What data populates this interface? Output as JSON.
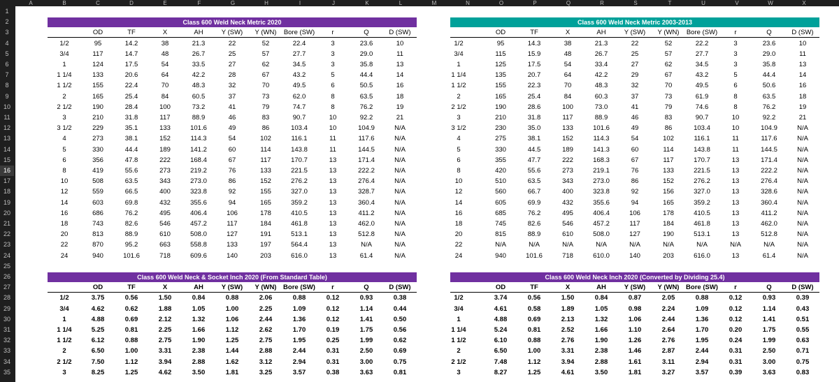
{
  "columns": [
    "A",
    "B",
    "C",
    "D",
    "E",
    "F",
    "G",
    "H",
    "I",
    "J",
    "K",
    "L",
    "M",
    "N",
    "O",
    "P",
    "Q",
    "R",
    "S",
    "T",
    "U",
    "V",
    "W",
    "X"
  ],
  "rows": [
    "1",
    "2",
    "3",
    "4",
    "5",
    "6",
    "7",
    "8",
    "9",
    "10",
    "11",
    "12",
    "13",
    "14",
    "15",
    "16",
    "17",
    "18",
    "19",
    "20",
    "21",
    "22",
    "23",
    "24",
    "25",
    "26",
    "27",
    "28",
    "29",
    "30",
    "31",
    "32",
    "33",
    "34",
    "35"
  ],
  "selected_row": "16",
  "colors": {
    "purple": "#7030a0",
    "teal": "#00a19a"
  },
  "headers": [
    "OD",
    "TF",
    "X",
    "AH",
    "Y (SW)",
    "Y (WN)",
    "Bore (SW)",
    "r",
    "Q",
    "D (SW)"
  ],
  "tables": [
    {
      "title": "Class 600 Weld Neck Metric 2020",
      "color": "purple",
      "rows": [
        [
          "1/2",
          "95",
          "14.2",
          "38",
          "21.3",
          "22",
          "52",
          "22.4",
          "3",
          "23.6",
          "10"
        ],
        [
          "3/4",
          "117",
          "14.7",
          "48",
          "26.7",
          "25",
          "57",
          "27.7",
          "3",
          "29.0",
          "11"
        ],
        [
          "1",
          "124",
          "17.5",
          "54",
          "33.5",
          "27",
          "62",
          "34.5",
          "3",
          "35.8",
          "13"
        ],
        [
          "1 1/4",
          "133",
          "20.6",
          "64",
          "42.2",
          "28",
          "67",
          "43.2",
          "5",
          "44.4",
          "14"
        ],
        [
          "1 1/2",
          "155",
          "22.4",
          "70",
          "48.3",
          "32",
          "70",
          "49.5",
          "6",
          "50.5",
          "16"
        ],
        [
          "2",
          "165",
          "25.4",
          "84",
          "60.5",
          "37",
          "73",
          "62.0",
          "8",
          "63.5",
          "18"
        ],
        [
          "2 1/2",
          "190",
          "28.4",
          "100",
          "73.2",
          "41",
          "79",
          "74.7",
          "8",
          "76.2",
          "19"
        ],
        [
          "3",
          "210",
          "31.8",
          "117",
          "88.9",
          "46",
          "83",
          "90.7",
          "10",
          "92.2",
          "21"
        ],
        [
          "3 1/2",
          "229",
          "35.1",
          "133",
          "101.6",
          "49",
          "86",
          "103.4",
          "10",
          "104.9",
          "N/A"
        ],
        [
          "4",
          "273",
          "38.1",
          "152",
          "114.3",
          "54",
          "102",
          "116.1",
          "11",
          "117.6",
          "N/A"
        ],
        [
          "5",
          "330",
          "44.4",
          "189",
          "141.2",
          "60",
          "114",
          "143.8",
          "11",
          "144.5",
          "N/A"
        ],
        [
          "6",
          "356",
          "47.8",
          "222",
          "168.4",
          "67",
          "117",
          "170.7",
          "13",
          "171.4",
          "N/A"
        ],
        [
          "8",
          "419",
          "55.6",
          "273",
          "219.2",
          "76",
          "133",
          "221.5",
          "13",
          "222.2",
          "N/A"
        ],
        [
          "10",
          "508",
          "63.5",
          "343",
          "273.0",
          "86",
          "152",
          "276.2",
          "13",
          "276.4",
          "N/A"
        ],
        [
          "12",
          "559",
          "66.5",
          "400",
          "323.8",
          "92",
          "155",
          "327.0",
          "13",
          "328.7",
          "N/A"
        ],
        [
          "14",
          "603",
          "69.8",
          "432",
          "355.6",
          "94",
          "165",
          "359.2",
          "13",
          "360.4",
          "N/A"
        ],
        [
          "16",
          "686",
          "76.2",
          "495",
          "406.4",
          "106",
          "178",
          "410.5",
          "13",
          "411.2",
          "N/A"
        ],
        [
          "18",
          "743",
          "82.6",
          "546",
          "457.2",
          "117",
          "184",
          "461.8",
          "13",
          "462.0",
          "N/A"
        ],
        [
          "20",
          "813",
          "88.9",
          "610",
          "508.0",
          "127",
          "191",
          "513.1",
          "13",
          "512.8",
          "N/A"
        ],
        [
          "22",
          "870",
          "95.2",
          "663",
          "558.8",
          "133",
          "197",
          "564.4",
          "13",
          "N/A",
          "N/A"
        ],
        [
          "24",
          "940",
          "101.6",
          "718",
          "609.6",
          "140",
          "203",
          "616.0",
          "13",
          "61.4",
          "N/A"
        ]
      ]
    },
    {
      "title": "Class 600 Weld Neck Metric 2003-2013",
      "color": "teal",
      "rows": [
        [
          "1/2",
          "95",
          "14.3",
          "38",
          "21.3",
          "22",
          "52",
          "22.2",
          "3",
          "23.6",
          "10"
        ],
        [
          "3/4",
          "115",
          "15.9",
          "48",
          "26.7",
          "25",
          "57",
          "27.7",
          "3",
          "29.0",
          "11"
        ],
        [
          "1",
          "125",
          "17.5",
          "54",
          "33.4",
          "27",
          "62",
          "34.5",
          "3",
          "35.8",
          "13"
        ],
        [
          "1 1/4",
          "135",
          "20.7",
          "64",
          "42.2",
          "29",
          "67",
          "43.2",
          "5",
          "44.4",
          "14"
        ],
        [
          "1 1/2",
          "155",
          "22.3",
          "70",
          "48.3",
          "32",
          "70",
          "49.5",
          "6",
          "50.6",
          "16"
        ],
        [
          "2",
          "165",
          "25.4",
          "84",
          "60.3",
          "37",
          "73",
          "61.9",
          "8",
          "63.5",
          "18"
        ],
        [
          "2 1/2",
          "190",
          "28.6",
          "100",
          "73.0",
          "41",
          "79",
          "74.6",
          "8",
          "76.2",
          "19"
        ],
        [
          "3",
          "210",
          "31.8",
          "117",
          "88.9",
          "46",
          "83",
          "90.7",
          "10",
          "92.2",
          "21"
        ],
        [
          "3 1/2",
          "230",
          "35.0",
          "133",
          "101.6",
          "49",
          "86",
          "103.4",
          "10",
          "104.9",
          "N/A"
        ],
        [
          "4",
          "275",
          "38.1",
          "152",
          "114.3",
          "54",
          "102",
          "116.1",
          "11",
          "117.6",
          "N/A"
        ],
        [
          "5",
          "330",
          "44.5",
          "189",
          "141.3",
          "60",
          "114",
          "143.8",
          "11",
          "144.5",
          "N/A"
        ],
        [
          "6",
          "355",
          "47.7",
          "222",
          "168.3",
          "67",
          "117",
          "170.7",
          "13",
          "171.4",
          "N/A"
        ],
        [
          "8",
          "420",
          "55.6",
          "273",
          "219.1",
          "76",
          "133",
          "221.5",
          "13",
          "222.2",
          "N/A"
        ],
        [
          "10",
          "510",
          "63.5",
          "343",
          "273.0",
          "86",
          "152",
          "276.2",
          "13",
          "276.4",
          "N/A"
        ],
        [
          "12",
          "560",
          "66.7",
          "400",
          "323.8",
          "92",
          "156",
          "327.0",
          "13",
          "328.6",
          "N/A"
        ],
        [
          "14",
          "605",
          "69.9",
          "432",
          "355.6",
          "94",
          "165",
          "359.2",
          "13",
          "360.4",
          "N/A"
        ],
        [
          "16",
          "685",
          "76.2",
          "495",
          "406.4",
          "106",
          "178",
          "410.5",
          "13",
          "411.2",
          "N/A"
        ],
        [
          "18",
          "745",
          "82.6",
          "546",
          "457.2",
          "117",
          "184",
          "461.8",
          "13",
          "462.0",
          "N/A"
        ],
        [
          "20",
          "815",
          "88.9",
          "610",
          "508.0",
          "127",
          "190",
          "513.1",
          "13",
          "512.8",
          "N/A"
        ],
        [
          "22",
          "N/A",
          "N/A",
          "N/A",
          "N/A",
          "N/A",
          "N/A",
          "N/A",
          "N/A",
          "N/A",
          "N/A"
        ],
        [
          "24",
          "940",
          "101.6",
          "718",
          "610.0",
          "140",
          "203",
          "616.0",
          "13",
          "61.4",
          "N/A"
        ]
      ]
    },
    {
      "title": "Class 600 Weld Neck & Socket Inch 2020 (From Standard Table)",
      "color": "purple",
      "rows": [
        [
          "1/2",
          "3.75",
          "0.56",
          "1.50",
          "0.84",
          "0.88",
          "2.06",
          "0.88",
          "0.12",
          "0.93",
          "0.38"
        ],
        [
          "3/4",
          "4.62",
          "0.62",
          "1.88",
          "1.05",
          "1.00",
          "2.25",
          "1.09",
          "0.12",
          "1.14",
          "0.44"
        ],
        [
          "1",
          "4.88",
          "0.69",
          "2.12",
          "1.32",
          "1.06",
          "2.44",
          "1.36",
          "0.12",
          "1.41",
          "0.50"
        ],
        [
          "1 1/4",
          "5.25",
          "0.81",
          "2.25",
          "1.66",
          "1.12",
          "2.62",
          "1.70",
          "0.19",
          "1.75",
          "0.56"
        ],
        [
          "1 1/2",
          "6.12",
          "0.88",
          "2.75",
          "1.90",
          "1.25",
          "2.75",
          "1.95",
          "0.25",
          "1.99",
          "0.62"
        ],
        [
          "2",
          "6.50",
          "1.00",
          "3.31",
          "2.38",
          "1.44",
          "2.88",
          "2.44",
          "0.31",
          "2.50",
          "0.69"
        ],
        [
          "2 1/2",
          "7.50",
          "1.12",
          "3.94",
          "2.88",
          "1.62",
          "3.12",
          "2.94",
          "0.31",
          "3.00",
          "0.75"
        ],
        [
          "3",
          "8.25",
          "1.25",
          "4.62",
          "3.50",
          "1.81",
          "3.25",
          "3.57",
          "0.38",
          "3.63",
          "0.81"
        ]
      ]
    },
    {
      "title": "Class 600 Weld Neck Inch 2020 (Converted by Dividing 25.4)",
      "color": "purple",
      "rows": [
        [
          "1/2",
          "3.74",
          "0.56",
          "1.50",
          "0.84",
          "0.87",
          "2.05",
          "0.88",
          "0.12",
          "0.93",
          "0.39"
        ],
        [
          "3/4",
          "4.61",
          "0.58",
          "1.89",
          "1.05",
          "0.98",
          "2.24",
          "1.09",
          "0.12",
          "1.14",
          "0.43"
        ],
        [
          "1",
          "4.88",
          "0.69",
          "2.13",
          "1.32",
          "1.06",
          "2.44",
          "1.36",
          "0.12",
          "1.41",
          "0.51"
        ],
        [
          "1 1/4",
          "5.24",
          "0.81",
          "2.52",
          "1.66",
          "1.10",
          "2.64",
          "1.70",
          "0.20",
          "1.75",
          "0.55"
        ],
        [
          "1 1/2",
          "6.10",
          "0.88",
          "2.76",
          "1.90",
          "1.26",
          "2.76",
          "1.95",
          "0.24",
          "1.99",
          "0.63"
        ],
        [
          "2",
          "6.50",
          "1.00",
          "3.31",
          "2.38",
          "1.46",
          "2.87",
          "2.44",
          "0.31",
          "2.50",
          "0.71"
        ],
        [
          "2 1/2",
          "7.48",
          "1.12",
          "3.94",
          "2.88",
          "1.61",
          "3.11",
          "2.94",
          "0.31",
          "3.00",
          "0.75"
        ],
        [
          "3",
          "8.27",
          "1.25",
          "4.61",
          "3.50",
          "1.81",
          "3.27",
          "3.57",
          "0.39",
          "3.63",
          "0.83"
        ]
      ]
    }
  ]
}
